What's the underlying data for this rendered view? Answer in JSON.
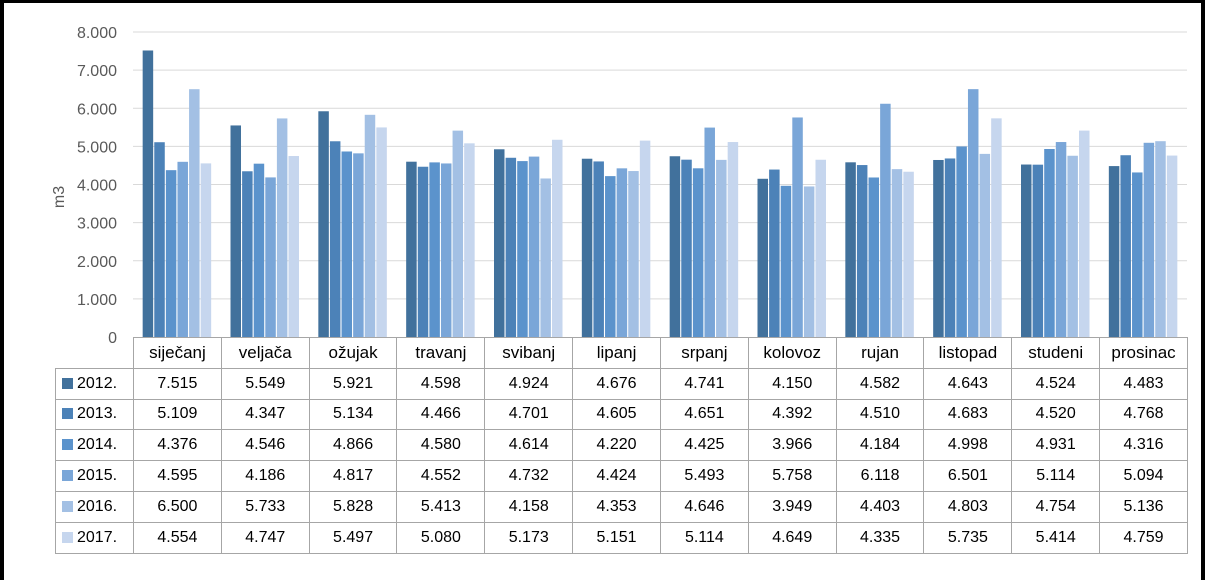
{
  "chart_data": {
    "type": "bar",
    "title": "",
    "xlabel": "",
    "ylabel": "m3",
    "ylim": [
      0,
      8000
    ],
    "yticks": [
      "0",
      "1.000",
      "2.000",
      "3.000",
      "4.000",
      "5.000",
      "6.000",
      "7.000",
      "8.000"
    ],
    "grid": true,
    "legend": "data-table",
    "categories": [
      "siječanj",
      "veljača",
      "ožujak",
      "travanj",
      "svibanj",
      "lipanj",
      "srpanj",
      "kolovoz",
      "rujan",
      "listopad",
      "studeni",
      "prosinac"
    ],
    "series": [
      {
        "name": "2012.",
        "color": "#41719c",
        "values": [
          7515,
          5549,
          5921,
          4598,
          4924,
          4676,
          4741,
          4150,
          4582,
          4643,
          4524,
          4483
        ],
        "labels": [
          "7.515",
          "5.549",
          "5.921",
          "4.598",
          "4.924",
          "4.676",
          "4.741",
          "4.150",
          "4.582",
          "4.643",
          "4.524",
          "4.483"
        ]
      },
      {
        "name": "2013.",
        "color": "#4c82b8",
        "values": [
          5109,
          4347,
          5134,
          4466,
          4701,
          4605,
          4651,
          4392,
          4510,
          4683,
          4520,
          4768
        ],
        "labels": [
          "5.109",
          "4.347",
          "5.134",
          "4.466",
          "4.701",
          "4.605",
          "4.651",
          "4.392",
          "4.510",
          "4.683",
          "4.520",
          "4.768"
        ]
      },
      {
        "name": "2014.",
        "color": "#5b93cc",
        "values": [
          4376,
          4546,
          4866,
          4580,
          4614,
          4220,
          4425,
          3966,
          4184,
          4998,
          4931,
          4316
        ],
        "labels": [
          "4.376",
          "4.546",
          "4.866",
          "4.580",
          "4.614",
          "4.220",
          "4.425",
          "3.966",
          "4.184",
          "4.998",
          "4.931",
          "4.316"
        ]
      },
      {
        "name": "2015.",
        "color": "#7aa6d8",
        "values": [
          4595,
          4186,
          4817,
          4552,
          4732,
          4424,
          5493,
          5758,
          6118,
          6501,
          5114,
          5094
        ],
        "labels": [
          "4.595",
          "4.186",
          "4.817",
          "4.552",
          "4.732",
          "4.424",
          "5.493",
          "5.758",
          "6.118",
          "6.501",
          "5.114",
          "5.094"
        ]
      },
      {
        "name": "2016.",
        "color": "#a3c0e4",
        "values": [
          6500,
          5733,
          5828,
          5413,
          4158,
          4353,
          4646,
          3949,
          4403,
          4803,
          4754,
          5136
        ],
        "labels": [
          "6.500",
          "5.733",
          "5.828",
          "5.413",
          "4.158",
          "4.353",
          "4.646",
          "3.949",
          "4.403",
          "4.803",
          "4.754",
          "5.136"
        ]
      },
      {
        "name": "2017.",
        "color": "#c6d6ee",
        "values": [
          4554,
          4747,
          5497,
          5080,
          5173,
          5151,
          5114,
          4649,
          4335,
          5735,
          5414,
          4759
        ],
        "labels": [
          "4.554",
          "4.747",
          "5.497",
          "5.080",
          "5.173",
          "5.151",
          "5.114",
          "4.649",
          "4.335",
          "5.735",
          "5.414",
          "4.759"
        ]
      }
    ]
  }
}
